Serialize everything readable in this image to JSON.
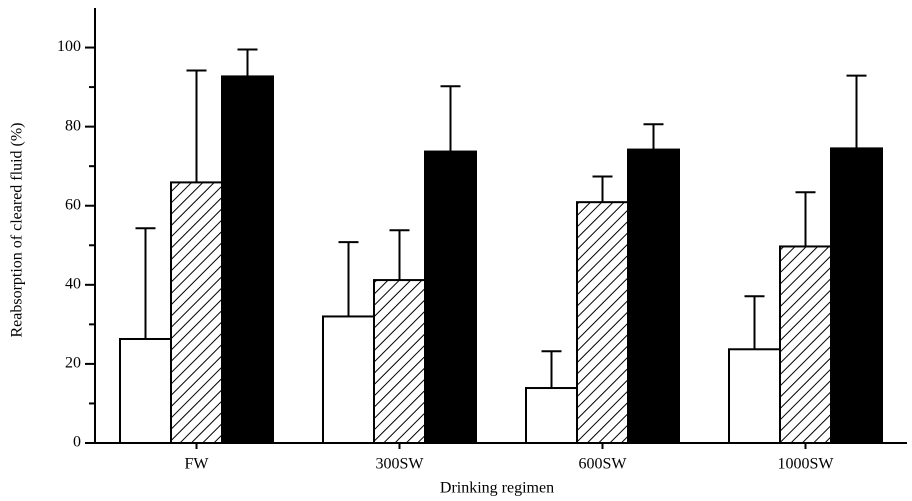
{
  "chart_data": {
    "type": "bar",
    "x_label": "Drinking regimen",
    "y_label": "Reabsorption of cleared fluid (%)",
    "categories": [
      "FW",
      "300SW",
      "600SW",
      "1000SW"
    ],
    "series": [
      {
        "color": "#ffffff",
        "hatch": false,
        "values": [
          26.3,
          32,
          13.9,
          23.7
        ],
        "errors": [
          28,
          18.8,
          9.3,
          13.4
        ]
      },
      {
        "color": "#ffffff",
        "hatch": true,
        "values": [
          65.9,
          41.2,
          60.9,
          49.7
        ],
        "errors": [
          28.3,
          12.6,
          6.5,
          13.7
        ]
      },
      {
        "color": "#000000",
        "hatch": false,
        "values": [
          92.7,
          73.7,
          74.2,
          74.5
        ],
        "errors": [
          6.8,
          16.5,
          6.4,
          18.4
        ]
      }
    ],
    "ylim": [
      0,
      110
    ],
    "yticks": [
      0,
      20,
      40,
      60,
      80,
      100
    ],
    "minor_yticks": [
      10,
      30,
      50,
      70,
      90
    ],
    "grid": false
  }
}
